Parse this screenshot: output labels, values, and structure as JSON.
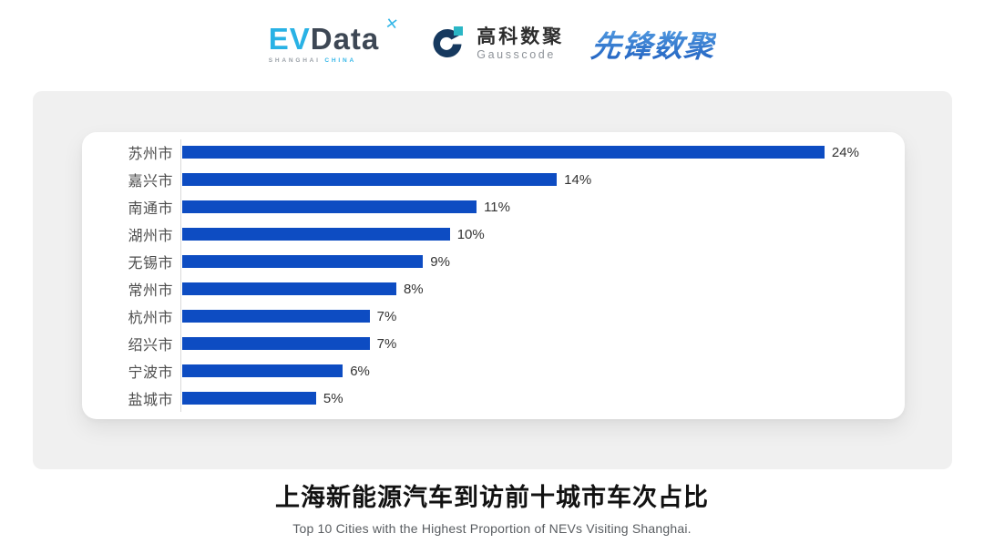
{
  "header": {
    "evdata": {
      "ev": "EV",
      "data": "Data",
      "x_mark": "✕",
      "sub_shanghai": "SHANGHAI",
      "sub_china": "CHINA"
    },
    "gausscode": {
      "cn": "高科数聚",
      "en": "Gausscode"
    },
    "pioneer": {
      "text": "先锋数聚"
    }
  },
  "chart_data": {
    "type": "bar",
    "orientation": "horizontal",
    "title": "上海新能源汽车到访前十城市车次占比",
    "subtitle": "Top 10 Cities with the Highest Proportion of  NEVs Visiting Shanghai.",
    "categories": [
      "苏州市",
      "嘉兴市",
      "南通市",
      "湖州市",
      "无锡市",
      "常州市",
      "杭州市",
      "绍兴市",
      "宁波市",
      "盐城市"
    ],
    "values": [
      24,
      14,
      11,
      10,
      9,
      8,
      7,
      7,
      6,
      5
    ],
    "value_labels": [
      "24%",
      "14%",
      "11%",
      "10%",
      "9%",
      "8%",
      "7%",
      "7%",
      "6%",
      "5%"
    ],
    "xlabel": "",
    "ylabel": "",
    "xlim": [
      0,
      27
    ],
    "grid": false,
    "legend": "none",
    "bar_color": "#0d4cc2",
    "axis_line_color": "#d9d9d9"
  },
  "footer": {
    "title": "上海新能源汽车到访前十城市车次占比",
    "subtitle": "Top 10 Cities with the Highest Proportion of  NEVs Visiting Shanghai."
  },
  "colors": {
    "panel_bg": "#f0f0f0",
    "card_bg": "#ffffff",
    "ev_blue": "#29b2e5",
    "ev_dark": "#3d4754",
    "gausscode_navy": "#16395f",
    "gausscode_teal": "#2ab6c5",
    "pioneer_blue": "#2b6fce"
  }
}
